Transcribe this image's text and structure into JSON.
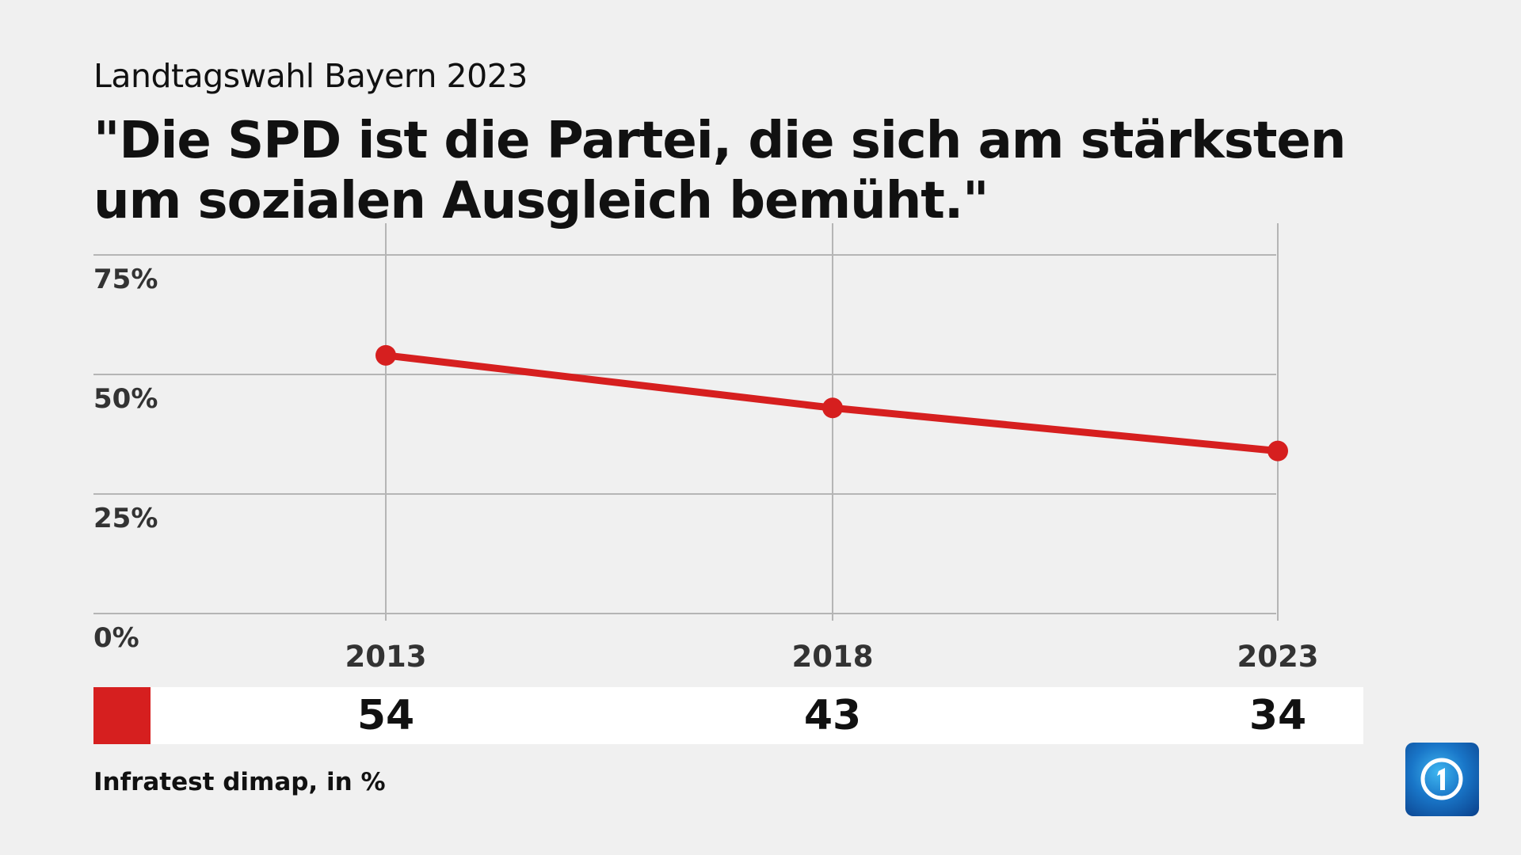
{
  "subtitle": "Landtagswahl Bayern 2023",
  "title": "\"Die SPD ist die Partei, die sich am stärksten um sozialen Ausgleich bemüht.\"",
  "source": "Infratest dimap, in %",
  "colors": {
    "series": "#d61f1f",
    "background": "#f0f0f0",
    "grid": "#b5b5b5"
  },
  "logo": "tagesschau-logo",
  "chart_data": {
    "type": "line",
    "categories": [
      "2013",
      "2018",
      "2023"
    ],
    "series": [
      {
        "values": [
          54,
          43,
          34
        ]
      }
    ],
    "ylim": [
      0,
      75
    ],
    "yticks": [
      0,
      25,
      50,
      75
    ],
    "ytick_labels": [
      "0%",
      "25%",
      "50%",
      "75%"
    ],
    "grid": true,
    "value_labels": [
      "54",
      "43",
      "34"
    ]
  }
}
